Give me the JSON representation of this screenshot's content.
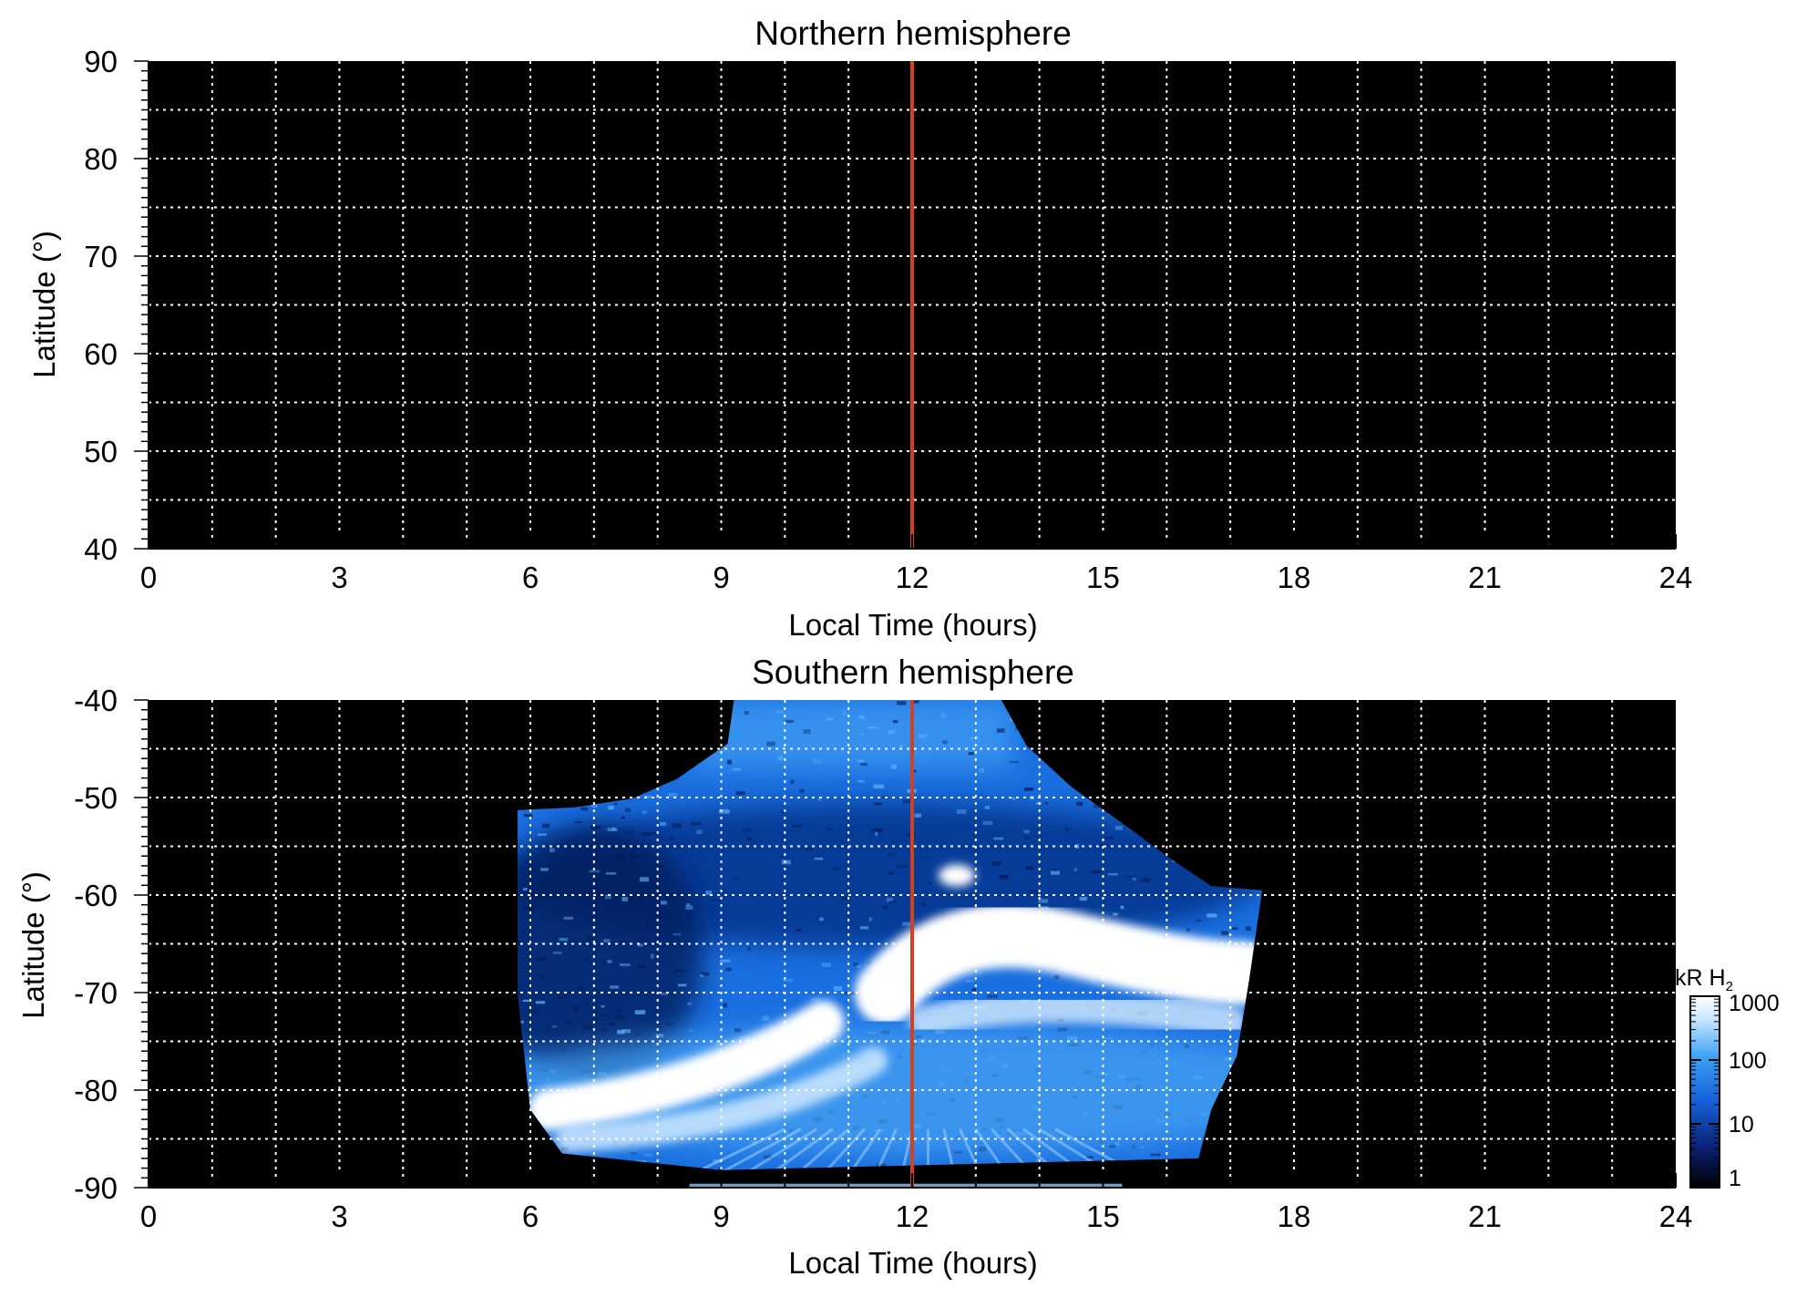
{
  "chart_data": [
    {
      "type": "heatmap",
      "title": "Northern hemisphere",
      "xlabel": "Local Time (hours)",
      "ylabel": "Latitude (°)",
      "xlim": [
        0,
        24
      ],
      "ylim": [
        40,
        90
      ],
      "xticks": [
        0,
        3,
        6,
        9,
        12,
        15,
        18,
        21,
        24
      ],
      "xtick_labels": [
        "0",
        "3",
        "6",
        "9",
        "12",
        "15",
        "18",
        "21",
        "24"
      ],
      "yticks": [
        40,
        50,
        60,
        70,
        80,
        90
      ],
      "ytick_labels": [
        "40",
        "50",
        "60",
        "70",
        "80",
        "90"
      ],
      "grid": true,
      "background_color": "#000000",
      "reference_line": {
        "x": 12,
        "color": "#d2401e"
      },
      "observed_region": null
    },
    {
      "type": "heatmap",
      "title": "Southern hemisphere",
      "xlabel": "Local Time (hours)",
      "ylabel": "Latitude (°)",
      "xlim": [
        0,
        24
      ],
      "ylim": [
        -90,
        -40
      ],
      "xticks": [
        0,
        3,
        6,
        9,
        12,
        15,
        18,
        21,
        24
      ],
      "xtick_labels": [
        "0",
        "3",
        "6",
        "9",
        "12",
        "15",
        "18",
        "21",
        "24"
      ],
      "yticks": [
        -90,
        -80,
        -70,
        -60,
        -50,
        -40
      ],
      "ytick_labels": [
        "-90",
        "-80",
        "-70",
        "-60",
        "-50",
        "-40"
      ],
      "grid": true,
      "background_color": "#000000",
      "reference_line": {
        "x": 12,
        "color": "#d2401e"
      },
      "observed_region": {
        "boundary": [
          [
            5.8,
            -51.3
          ],
          [
            6.7,
            -51.0
          ],
          [
            7.6,
            -50.1
          ],
          [
            8.3,
            -48.1
          ],
          [
            9.1,
            -44.5
          ],
          [
            9.2,
            -40.0
          ],
          [
            13.4,
            -40.0
          ],
          [
            13.8,
            -44.7
          ],
          [
            14.5,
            -48.9
          ],
          [
            15.4,
            -53.1
          ],
          [
            16.0,
            -56.0
          ],
          [
            16.7,
            -59.1
          ],
          [
            17.5,
            -59.5
          ],
          [
            17.3,
            -68.5
          ],
          [
            17.1,
            -76.5
          ],
          [
            16.7,
            -82.0
          ],
          [
            16.5,
            -87.0
          ],
          [
            9.0,
            -88.2
          ],
          [
            6.5,
            -86.5
          ],
          [
            6.0,
            -82.0
          ],
          [
            5.8,
            -70.0
          ],
          [
            5.8,
            -51.3
          ]
        ],
        "base_level_kR": 120,
        "features": [
          {
            "name": "dayside oval",
            "lt": 14.6,
            "lat": -67.0,
            "peak_kR": 1000
          },
          {
            "name": "pre-noon arc",
            "lt": 8.6,
            "lat": -80.0,
            "peak_kR": 1000
          },
          {
            "name": "spot",
            "lt": 12.7,
            "lat": -58.0,
            "peak_kR": 1000
          }
        ]
      }
    }
  ],
  "colorbar": {
    "title": "kR H",
    "title_subscript": "2",
    "tick_labels": [
      "1",
      "10",
      "100",
      "1000"
    ],
    "ticks": [
      1,
      10,
      100,
      1000
    ],
    "scale": "log",
    "range": [
      1,
      1000
    ],
    "colors": [
      "#000000",
      "#0a1f70",
      "#1560d8",
      "#3aa0f5",
      "#c8e6ff",
      "#ffffff"
    ]
  }
}
